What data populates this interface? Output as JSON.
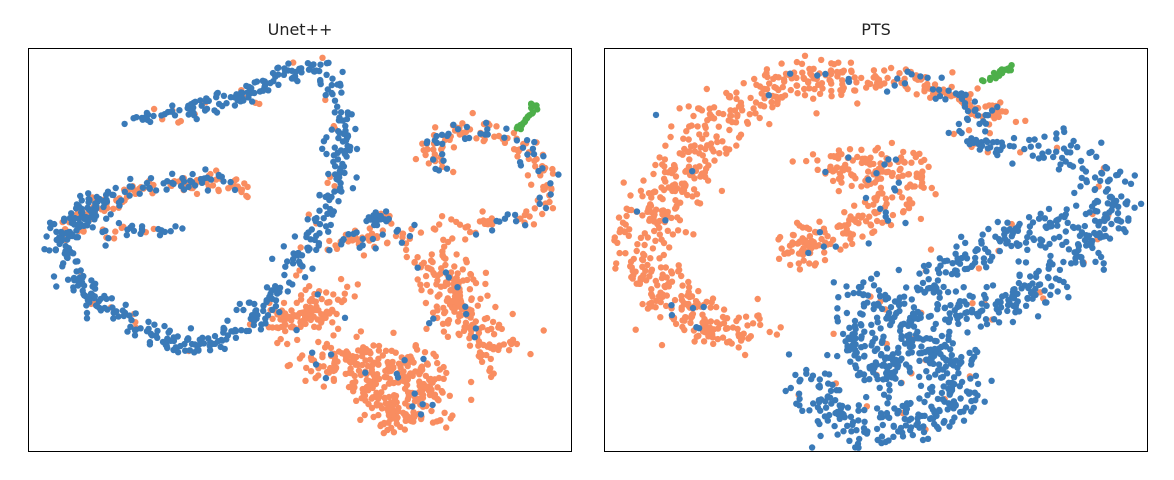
{
  "chart_data": [
    {
      "type": "scatter",
      "title": "Unet++",
      "xlabel": "",
      "ylabel": "",
      "grid": false,
      "legend": "none",
      "xlim": [
        0,
        100
      ],
      "ylim": [
        0,
        100
      ],
      "colors": {
        "blue": "#3a7ab8",
        "orange": "#f98d60",
        "green": "#4daf4a"
      },
      "clusters": [
        {
          "color": "blue",
          "path": [
            [
              20,
              82
            ],
            [
              30,
              85
            ],
            [
              40,
              88
            ],
            [
              48,
              94
            ],
            [
              53,
              96
            ],
            [
              56,
              90
            ],
            [
              58,
              80
            ],
            [
              57,
              68
            ],
            [
              54,
              58
            ],
            [
              50,
              48
            ],
            [
              46,
              40
            ],
            [
              42,
              34
            ],
            [
              38,
              30
            ],
            [
              34,
              27
            ],
            [
              30,
              26
            ],
            [
              24,
              29
            ],
            [
              18,
              33
            ],
            [
              12,
              38
            ],
            [
              8,
              44
            ],
            [
              6,
              50
            ],
            [
              7,
              56
            ],
            [
              10,
              60
            ],
            [
              14,
              63
            ],
            [
              18,
              65
            ]
          ],
          "n": 560,
          "spread": 1.4,
          "mix": 0.06
        },
        {
          "color": "orange",
          "path": [
            [
              7,
              53
            ],
            [
              12,
              60
            ],
            [
              18,
              64
            ],
            [
              24,
              66
            ],
            [
              30,
              67
            ],
            [
              36,
              67
            ],
            [
              40,
              65
            ]
          ],
          "n": 160,
          "spread": 1.2,
          "mix": 0.35
        },
        {
          "color": "blue",
          "path": [
            [
              12,
              52
            ],
            [
              18,
              55
            ],
            [
              24,
              55
            ],
            [
              28,
              54
            ]
          ],
          "n": 30,
          "spread": 1.0,
          "mix": 0.3
        },
        {
          "color": "orange",
          "path": [
            [
              56,
              51
            ],
            [
              62,
              53
            ],
            [
              70,
              55
            ],
            [
              78,
              56
            ],
            [
              86,
              57
            ],
            [
              94,
              60
            ],
            [
              96,
              66
            ],
            [
              94,
              72
            ],
            [
              90,
              78
            ],
            [
              84,
              80
            ],
            [
              78,
              79
            ],
            [
              74,
              74
            ],
            [
              76,
              70
            ]
          ],
          "n": 200,
          "spread": 1.4,
          "mix": 0.3
        },
        {
          "color": "blue",
          "path": [
            [
              62,
              57
            ],
            [
              66,
              58
            ]
          ],
          "n": 25,
          "spread": 1.0,
          "mix": 0.2
        },
        {
          "color": "blue",
          "path": [
            [
              73,
              76
            ],
            [
              78,
              78
            ],
            [
              84,
              79
            ],
            [
              89,
              77
            ],
            [
              91,
              70
            ]
          ],
          "n": 30,
          "spread": 1.0,
          "mix": 0.2
        },
        {
          "color": "green",
          "path": [
            [
              90,
              80
            ],
            [
              92,
              83
            ],
            [
              93,
              86
            ]
          ],
          "n": 22,
          "spread": 0.4,
          "mix": 0
        },
        {
          "color": "orange",
          "path": [
            [
              47,
              32
            ],
            [
              52,
              34
            ],
            [
              56,
              38
            ]
          ],
          "n": 100,
          "spread": 2.5,
          "mix": 0.04
        },
        {
          "color": "orange",
          "path": [
            [
              50,
              24
            ],
            [
              56,
              22
            ],
            [
              62,
              22
            ],
            [
              68,
              22
            ],
            [
              72,
              18
            ],
            [
              74,
              10
            ]
          ],
          "n": 250,
          "spread": 3.0,
          "mix": 0.04
        },
        {
          "color": "orange",
          "path": [
            [
              75,
              48
            ],
            [
              77,
              42
            ],
            [
              80,
              35
            ],
            [
              84,
              28
            ],
            [
              86,
              24
            ]
          ],
          "n": 200,
          "spread": 2.8,
          "mix": 0.04
        },
        {
          "color": "orange",
          "path": [
            [
              62,
              15
            ],
            [
              66,
              10
            ],
            [
              70,
              7
            ]
          ],
          "n": 90,
          "spread": 2.2,
          "mix": 0.04
        }
      ]
    },
    {
      "type": "scatter",
      "title": "PTS",
      "xlabel": "",
      "ylabel": "",
      "grid": false,
      "legend": "none",
      "xlim": [
        0,
        100
      ],
      "ylim": [
        0,
        100
      ],
      "colors": {
        "blue": "#3a7ab8",
        "orange": "#f98d60",
        "green": "#4daf4a"
      },
      "clusters": [
        {
          "color": "orange",
          "path": [
            [
              42,
              93
            ],
            [
              34,
              90
            ],
            [
              26,
              86
            ],
            [
              20,
              82
            ],
            [
              17,
              74
            ],
            [
              13,
              66
            ],
            [
              9,
              58
            ],
            [
              6,
              53
            ],
            [
              8,
              45
            ],
            [
              12,
              38
            ],
            [
              17,
              33
            ],
            [
              22,
              30
            ],
            [
              28,
              31
            ]
          ],
          "n": 520,
          "spread": 3.0,
          "mix": 0.03
        },
        {
          "color": "orange",
          "path": [
            [
              40,
              93
            ],
            [
              48,
              92
            ],
            [
              56,
              92
            ],
            [
              63,
              90
            ],
            [
              68,
              86
            ],
            [
              72,
              84
            ],
            [
              76,
              83
            ]
          ],
          "n": 120,
          "spread": 1.6,
          "mix": 0.15
        },
        {
          "color": "blue",
          "path": [
            [
              60,
              91
            ],
            [
              64,
              88
            ],
            [
              68,
              85
            ],
            [
              72,
              82
            ]
          ],
          "n": 30,
          "spread": 1.3,
          "mix": 0.2
        },
        {
          "color": "green",
          "path": [
            [
              70,
              92
            ],
            [
              73,
              94
            ],
            [
              75,
              95
            ]
          ],
          "n": 20,
          "spread": 0.4,
          "mix": 0
        },
        {
          "color": "orange",
          "path": [
            [
              41,
              72
            ],
            [
              46,
              70
            ],
            [
              52,
              72
            ],
            [
              58,
              68
            ]
          ],
          "n": 120,
          "spread": 2.4,
          "mix": 0.1
        },
        {
          "color": "orange",
          "path": [
            [
              34,
              50
            ],
            [
              40,
              52
            ],
            [
              46,
              56
            ],
            [
              52,
              60
            ],
            [
              54,
              64
            ]
          ],
          "n": 140,
          "spread": 2.4,
          "mix": 0.08
        },
        {
          "color": "blue",
          "path": [
            [
              65,
              80
            ],
            [
              70,
              76
            ],
            [
              76,
              74
            ]
          ],
          "n": 40,
          "spread": 1.6,
          "mix": 0.2
        },
        {
          "color": "blue",
          "path": [
            [
              80,
              76
            ],
            [
              86,
              72
            ],
            [
              92,
              68
            ],
            [
              94,
              62
            ],
            [
              92,
              56
            ],
            [
              88,
              50
            ],
            [
              84,
              44
            ],
            [
              78,
              40
            ],
            [
              72,
              36
            ],
            [
              66,
              34
            ],
            [
              62,
              38
            ],
            [
              60,
              44
            ],
            [
              64,
              48
            ],
            [
              70,
              50
            ],
            [
              76,
              54
            ],
            [
              82,
              56
            ],
            [
              86,
              58
            ]
          ],
          "n": 420,
          "spread": 2.4,
          "mix": 0.04
        },
        {
          "color": "blue",
          "path": [
            [
              48,
              40
            ],
            [
              52,
              36
            ],
            [
              56,
              30
            ],
            [
              60,
              26
            ],
            [
              64,
              22
            ],
            [
              66,
              16
            ],
            [
              62,
              10
            ],
            [
              56,
              7
            ],
            [
              50,
              6
            ],
            [
              44,
              8
            ],
            [
              40,
              12
            ],
            [
              38,
              18
            ]
          ],
          "n": 380,
          "spread": 2.8,
          "mix": 0.03
        },
        {
          "color": "blue",
          "path": [
            [
              46,
              30
            ],
            [
              50,
              24
            ],
            [
              56,
              20
            ]
          ],
          "n": 120,
          "spread": 3.0,
          "mix": 0.03
        }
      ]
    }
  ]
}
